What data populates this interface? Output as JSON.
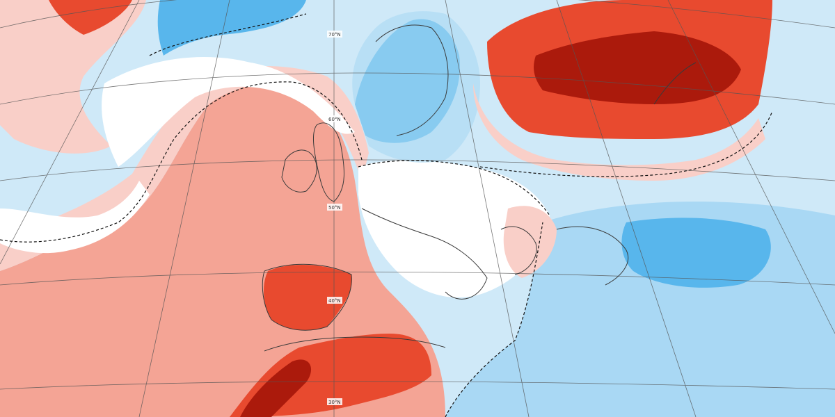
{
  "map": {
    "type": "anomaly-map",
    "projection": "conic",
    "latitude_labels": [
      "70°N",
      "60°N",
      "50°N",
      "40°N",
      "30°N"
    ],
    "palette": {
      "ocean_neutral": "#d8eefb",
      "neutral": "#ffffff",
      "warm_light": "#f9cfc8",
      "warm_mid": "#f4a495",
      "warm_strong": "#e84a2f",
      "warm_extreme": "#ab1a0c",
      "cool_light": "#cfe9f8",
      "cool_mid": "#a9d8f4",
      "cool_strong": "#58b6ec",
      "cool_extreme": "#2a9ae0",
      "coastline": "#3a3a3a",
      "gridline": "#555555",
      "zero_contour": "#111111"
    }
  }
}
